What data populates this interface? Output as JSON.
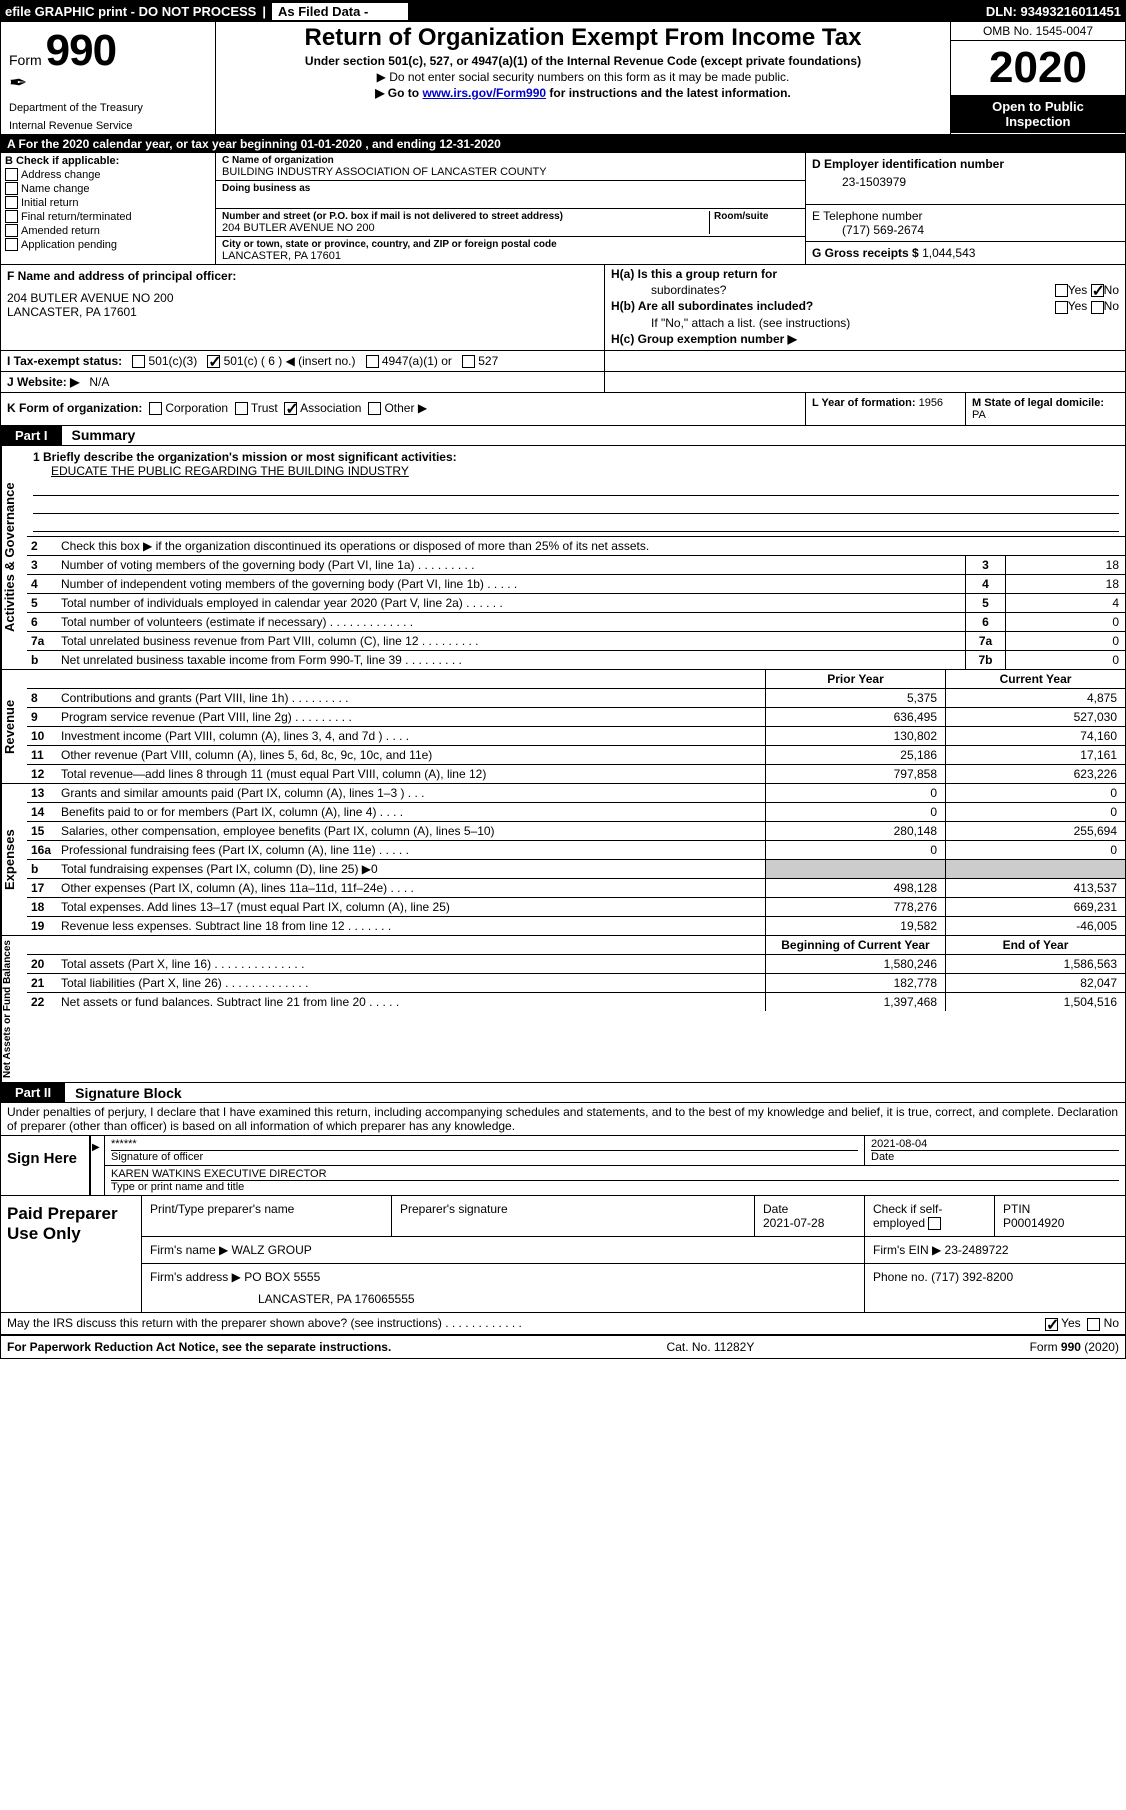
{
  "topbar": {
    "efile": "efile GRAPHIC print - DO NOT PROCESS",
    "filed": "As Filed Data -",
    "dln": "DLN: 93493216011451"
  },
  "header": {
    "form_word": "Form",
    "form_num": "990",
    "dept1": "Department of the Treasury",
    "dept2": "Internal Revenue Service",
    "title": "Return of Organization Exempt From Income Tax",
    "sub": "Under section 501(c), 527, or 4947(a)(1) of the Internal Revenue Code (except private foundations)",
    "sub2": "▶ Do not enter social security numbers on this form as it may be made public.",
    "sub3a": "▶ Go to ",
    "sub3_link": "www.irs.gov/Form990",
    "sub3b": " for instructions and the latest information.",
    "omb": "OMB No. 1545-0047",
    "year": "2020",
    "inspect1": "Open to Public",
    "inspect2": "Inspection"
  },
  "row_a": "A   For the 2020 calendar year, or tax year beginning 01-01-2020   , and ending 12-31-2020",
  "box_b": {
    "label": "B Check if applicable:",
    "opts": [
      "Address change",
      "Name change",
      "Initial return",
      "Final return/terminated",
      "Amended return",
      "Application pending"
    ]
  },
  "box_c": {
    "name_lab": "C Name of organization",
    "name": "BUILDING INDUSTRY ASSOCIATION OF LANCASTER COUNTY",
    "dba_lab": "Doing business as",
    "addr_lab": "Number and street (or P.O. box if mail is not delivered to street address)",
    "room_lab": "Room/suite",
    "addr": "204 BUTLER AVENUE NO 200",
    "city_lab": "City or town, state or province, country, and ZIP or foreign postal code",
    "city": "LANCASTER, PA  17601"
  },
  "box_d": {
    "lab": "D Employer identification number",
    "val": "23-1503979"
  },
  "box_e": {
    "lab": "E Telephone number",
    "val": "(717) 569-2674"
  },
  "box_g": {
    "lab": "G Gross receipts $",
    "val": "1,044,543"
  },
  "box_f": {
    "lab": "F  Name and address of principal officer:",
    "line1": "204 BUTLER AVENUE NO 200",
    "line2": "LANCASTER, PA  17601"
  },
  "box_h": {
    "a_lab": "H(a)  Is this a group return for",
    "a_lab2": "subordinates?",
    "b_lab": "H(b)  Are all subordinates included?",
    "b_note": "If \"No,\" attach a list. (see instructions)",
    "c_lab": "H(c)  Group exemption number ▶",
    "yes": "Yes",
    "no": "No"
  },
  "row_i": {
    "lab": "I   Tax-exempt status:",
    "o1": "501(c)(3)",
    "o2": "501(c) ( 6 ) ◀ (insert no.)",
    "o3": "4947(a)(1) or",
    "o4": "527"
  },
  "row_j": {
    "lab": "J   Website: ▶",
    "val": "N/A"
  },
  "row_k": {
    "lab": "K Form of organization:",
    "o1": "Corporation",
    "o2": "Trust",
    "o3": "Association",
    "o4": "Other ▶"
  },
  "box_l": {
    "lab": "L Year of formation:",
    "val": "1956"
  },
  "box_m": {
    "lab": "M State of legal domicile:",
    "val": "PA"
  },
  "parts": {
    "p1": "Part I",
    "p1_title": "Summary",
    "p2": "Part II",
    "p2_title": "Signature Block"
  },
  "summary": {
    "line1_lab": "1  Briefly describe the organization's mission or most significant activities:",
    "line1_val": "EDUCATE THE PUBLIC REGARDING THE BUILDING INDUSTRY",
    "line2": "Check this box ▶       if the organization discontinued its operations or disposed of more than 25% of its net assets.",
    "rows_gov": [
      {
        "n": "3",
        "d": "Number of voting members of the governing body (Part VI, line 1a)  .   .   .   .   .   .   .   .   .",
        "bn": "3",
        "bv": "18"
      },
      {
        "n": "4",
        "d": "Number of independent voting members of the governing body (Part VI, line 1b)  .   .   .   .   .",
        "bn": "4",
        "bv": "18"
      },
      {
        "n": "5",
        "d": "Total number of individuals employed in calendar year 2020 (Part V, line 2a)  .   .   .   .   .   .",
        "bn": "5",
        "bv": "4"
      },
      {
        "n": "6",
        "d": "Total number of volunteers (estimate if necessary)  .   .   .   .   .   .   .   .   .   .   .   .   .",
        "bn": "6",
        "bv": "0"
      },
      {
        "n": "7a",
        "d": "Total unrelated business revenue from Part VIII, column (C), line 12  .   .   .   .   .   .   .   .   .",
        "bn": "7a",
        "bv": "0"
      },
      {
        "n": "b",
        "d": "Net unrelated business taxable income from Form 990-T, line 39  .   .   .   .   .   .   .   .   .",
        "bn": "7b",
        "bv": "0"
      }
    ],
    "hdr_prior": "Prior Year",
    "hdr_curr": "Current Year",
    "rows_rev": [
      {
        "n": "8",
        "d": "Contributions and grants (Part VIII, line 1h)  .   .   .   .   .   .   .   .   .",
        "p": "5,375",
        "c": "4,875"
      },
      {
        "n": "9",
        "d": "Program service revenue (Part VIII, line 2g)  .   .   .   .   .   .   .   .   .",
        "p": "636,495",
        "c": "527,030"
      },
      {
        "n": "10",
        "d": "Investment income (Part VIII, column (A), lines 3, 4, and 7d )  .   .   .   .",
        "p": "130,802",
        "c": "74,160"
      },
      {
        "n": "11",
        "d": "Other revenue (Part VIII, column (A), lines 5, 6d, 8c, 9c, 10c, and 11e)",
        "p": "25,186",
        "c": "17,161"
      },
      {
        "n": "12",
        "d": "Total revenue—add lines 8 through 11 (must equal Part VIII, column (A), line 12)",
        "p": "797,858",
        "c": "623,226"
      }
    ],
    "rows_exp": [
      {
        "n": "13",
        "d": "Grants and similar amounts paid (Part IX, column (A), lines 1–3 )  .   .   .",
        "p": "0",
        "c": "0"
      },
      {
        "n": "14",
        "d": "Benefits paid to or for members (Part IX, column (A), line 4)  .   .   .   .",
        "p": "0",
        "c": "0"
      },
      {
        "n": "15",
        "d": "Salaries, other compensation, employee benefits (Part IX, column (A), lines 5–10)",
        "p": "280,148",
        "c": "255,694"
      },
      {
        "n": "16a",
        "d": "Professional fundraising fees (Part IX, column (A), line 11e)  .   .   .   .   .",
        "p": "0",
        "c": "0"
      },
      {
        "n": "b",
        "d": "Total fundraising expenses (Part IX, column (D), line 25) ▶0",
        "p": "",
        "c": "",
        "gray": true
      },
      {
        "n": "17",
        "d": "Other expenses (Part IX, column (A), lines 11a–11d, 11f–24e)  .   .   .   .",
        "p": "498,128",
        "c": "413,537"
      },
      {
        "n": "18",
        "d": "Total expenses. Add lines 13–17 (must equal Part IX, column (A), line 25)",
        "p": "778,276",
        "c": "669,231"
      },
      {
        "n": "19",
        "d": "Revenue less expenses. Subtract line 18 from line 12  .   .   .   .   .   .   .",
        "p": "19,582",
        "c": "-46,005"
      }
    ],
    "hdr_beg": "Beginning of Current Year",
    "hdr_end": "End of Year",
    "rows_net": [
      {
        "n": "20",
        "d": "Total assets (Part X, line 16)  .   .   .   .   .   .   .   .   .   .   .   .   .   .",
        "p": "1,580,246",
        "c": "1,586,563"
      },
      {
        "n": "21",
        "d": "Total liabilities (Part X, line 26)  .   .   .   .   .   .   .   .   .   .   .   .   .",
        "p": "182,778",
        "c": "82,047"
      },
      {
        "n": "22",
        "d": "Net assets or fund balances. Subtract line 21 from line 20  .   .   .   .   .",
        "p": "1,397,468",
        "c": "1,504,516"
      }
    ],
    "vtabs": {
      "gov": "Activities & Governance",
      "rev": "Revenue",
      "exp": "Expenses",
      "net": "Net Assets or Fund Balances"
    }
  },
  "sig_decl": "Under penalties of perjury, I declare that I have examined this return, including accompanying schedules and statements, and to the best of my knowledge and belief, it is true, correct, and complete. Declaration of preparer (other than officer) is based on all information of which preparer has any knowledge.",
  "sign": {
    "here": "Sign Here",
    "stars": "******",
    "sig_lab": "Signature of officer",
    "date_lab": "Date",
    "date": "2021-08-04",
    "name": "KAREN WATKINS  EXECUTIVE DIRECTOR",
    "name_lab": "Type or print name and title"
  },
  "paid": {
    "title": "Paid Preparer Use Only",
    "h1": "Print/Type preparer's name",
    "h2": "Preparer's signature",
    "h3": "Date",
    "date": "2021-07-28",
    "h4": "Check       if self-employed",
    "h5": "PTIN",
    "ptin": "P00014920",
    "firm_lab": "Firm's name    ▶",
    "firm": "WALZ GROUP",
    "ein_lab": "Firm's EIN ▶",
    "ein": "23-2489722",
    "addr_lab": "Firm's address ▶",
    "addr1": "PO BOX 5555",
    "addr2": "LANCASTER, PA  176065555",
    "phone_lab": "Phone no.",
    "phone": "(717) 392-8200"
  },
  "discuss": "May the IRS discuss this return with the preparer shown above? (see instructions)  .   .   .   .   .   .   .   .   .   .   .   .",
  "footer": {
    "l": "For Paperwork Reduction Act Notice, see the separate instructions.",
    "m": "Cat. No. 11282Y",
    "r": "Form 990 (2020)"
  }
}
